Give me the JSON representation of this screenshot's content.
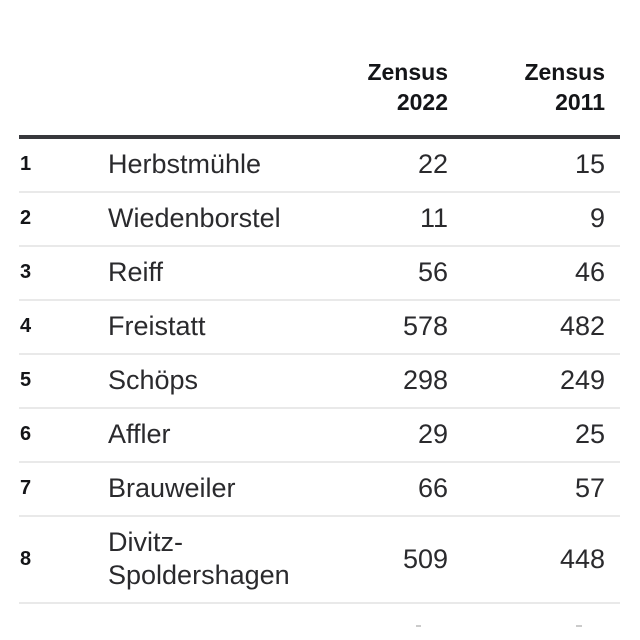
{
  "colors": {
    "background": "#ffffff",
    "header_rule": "#37383c",
    "row_divider": "#e9e9e9",
    "header_text": "#141518",
    "body_text": "#2a2a2d"
  },
  "table": {
    "columns": {
      "zensus2022": {
        "line1": "Zensus",
        "line2": "2022"
      },
      "zensus2011": {
        "line1": "Zensus",
        "line2": "2011"
      }
    },
    "rows": [
      {
        "rank": "1",
        "name": "Herbstmühle",
        "zensus2022": "22",
        "zensus2011": "15"
      },
      {
        "rank": "2",
        "name": "Wiedenborstel",
        "zensus2022": "11",
        "zensus2011": "9"
      },
      {
        "rank": "3",
        "name": "Reiff",
        "zensus2022": "56",
        "zensus2011": "46"
      },
      {
        "rank": "4",
        "name": "Freistatt",
        "zensus2022": "578",
        "zensus2011": "482"
      },
      {
        "rank": "5",
        "name": "Schöps",
        "zensus2022": "298",
        "zensus2011": "249"
      },
      {
        "rank": "6",
        "name": "Affler",
        "zensus2022": "29",
        "zensus2011": "25"
      },
      {
        "rank": "7",
        "name": "Brauweiler",
        "zensus2022": "66",
        "zensus2011": "57"
      },
      {
        "rank": "8",
        "name": "Divitz-Spoldershagen",
        "zensus2022": "509",
        "zensus2011": "448"
      }
    ]
  },
  "chart_data": {
    "type": "table",
    "title": "",
    "columns": [
      "",
      "",
      "Zensus 2022",
      "Zensus 2011"
    ],
    "rows": [
      [
        "1",
        "Herbstmühle",
        22,
        15
      ],
      [
        "2",
        "Wiedenborstel",
        11,
        9
      ],
      [
        "3",
        "Reiff",
        56,
        46
      ],
      [
        "4",
        "Freistatt",
        578,
        482
      ],
      [
        "5",
        "Schöps",
        298,
        249
      ],
      [
        "6",
        "Affler",
        29,
        25
      ],
      [
        "7",
        "Brauweiler",
        66,
        57
      ],
      [
        "8",
        "Divitz-Spoldershagen",
        509,
        448
      ]
    ]
  }
}
